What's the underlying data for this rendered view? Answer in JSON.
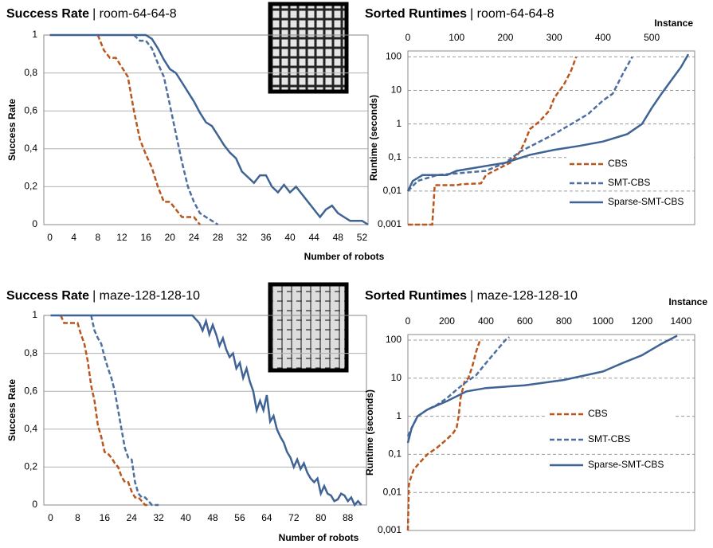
{
  "chart_data": [
    {
      "type": "line",
      "title": "Success Rate",
      "subtitle": "| room-64-64-8",
      "x_label": "Number of robots",
      "y_label": "Success Rate",
      "xlim": [
        -1,
        53
      ],
      "xticks": [
        0,
        4,
        8,
        12,
        16,
        20,
        24,
        28,
        32,
        36,
        40,
        44,
        48,
        52
      ],
      "ylim": [
        0,
        1
      ],
      "yticks": [
        0,
        {
          "value": 0.2,
          "label": "0,2"
        },
        {
          "value": 0.4,
          "label": "0,4"
        },
        {
          "value": 0.6,
          "label": "0,6"
        },
        {
          "value": 0.8,
          "label": "0,8"
        },
        1
      ],
      "grid": true,
      "series": [
        {
          "color": "#b8561e",
          "dashed": true,
          "x": [
            8,
            9,
            10,
            11,
            12,
            13,
            14,
            15,
            16,
            17,
            18,
            19,
            20,
            21,
            22,
            23,
            24,
            25
          ],
          "values": [
            1,
            0.92,
            0.88,
            0.88,
            0.83,
            0.78,
            0.6,
            0.45,
            0.37,
            0.3,
            0.2,
            0.12,
            0.12,
            0.08,
            0.04,
            0.04,
            0.04,
            0
          ]
        },
        {
          "color": "#4d6f9f",
          "dashed": true,
          "x": [
            14,
            15,
            16,
            17,
            18,
            19,
            20,
            21,
            22,
            23,
            24,
            25,
            26,
            27,
            28
          ],
          "values": [
            1,
            0.97,
            0.97,
            0.93,
            0.85,
            0.78,
            0.63,
            0.48,
            0.33,
            0.2,
            0.12,
            0.06,
            0.04,
            0.02,
            0
          ]
        },
        {
          "color": "#3f6394",
          "dashed": false,
          "x": [
            0,
            16,
            17,
            18,
            19,
            20,
            21,
            22,
            23,
            24,
            25,
            26,
            27,
            28,
            29,
            30,
            31,
            32,
            33,
            34,
            35,
            36,
            37,
            38,
            39,
            40,
            41,
            42,
            43,
            44,
            45,
            46,
            47,
            48,
            49,
            50,
            51,
            52,
            53
          ],
          "values": [
            1,
            1,
            0.98,
            0.93,
            0.87,
            0.82,
            0.8,
            0.75,
            0.7,
            0.65,
            0.59,
            0.54,
            0.52,
            0.47,
            0.42,
            0.38,
            0.35,
            0.28,
            0.25,
            0.22,
            0.26,
            0.26,
            0.2,
            0.17,
            0.21,
            0.17,
            0.2,
            0.16,
            0.12,
            0.08,
            0.04,
            0.08,
            0.1,
            0.06,
            0.04,
            0.02,
            0.02,
            0.02,
            0
          ]
        }
      ]
    },
    {
      "type": "line",
      "title": "Sorted Runtimes",
      "subtitle": "| room-64-64-8",
      "x_label": "Instance",
      "y_label": "Runtime (seconds)",
      "xlim": [
        0,
        588
      ],
      "xticks": [
        0,
        100,
        200,
        300,
        400,
        500
      ],
      "ylim": [
        0.001,
        150
      ],
      "yscale": "log",
      "yticks": [
        {
          "value": 0.001,
          "label": "0,001"
        },
        {
          "value": 0.01,
          "label": "0,01"
        },
        {
          "value": 0.1,
          "label": "0,1"
        },
        1,
        10,
        100
      ],
      "grid": true,
      "grid_dashed": true,
      "legend": "lower right",
      "series": [
        {
          "name": "CBS",
          "color": "#b8561e",
          "dashed": true,
          "x": [
            0,
            50,
            55,
            100,
            110,
            150,
            160,
            190,
            210,
            230,
            240,
            250,
            270,
            290,
            300,
            320,
            335,
            345
          ],
          "values": [
            0.001,
            0.001,
            0.015,
            0.015,
            0.016,
            0.017,
            0.03,
            0.05,
            0.07,
            0.15,
            0.3,
            0.7,
            1.2,
            2.5,
            6,
            15,
            40,
            100
          ]
        },
        {
          "name": "SMT-CBS",
          "color": "#4d6f9f",
          "dashed": true,
          "x": [
            0,
            20,
            60,
            160,
            200,
            230,
            260,
            300,
            340,
            370,
            400,
            420,
            440,
            460
          ],
          "values": [
            0.01,
            0.02,
            0.03,
            0.04,
            0.07,
            0.15,
            0.25,
            0.5,
            1.1,
            2,
            5,
            8,
            30,
            100
          ]
        },
        {
          "name": "Sparse-SMT-CBS",
          "color": "#3f6394",
          "dashed": false,
          "x": [
            0,
            10,
            30,
            80,
            100,
            200,
            250,
            300,
            350,
            400,
            450,
            480,
            500,
            520,
            540,
            560,
            575
          ],
          "values": [
            0.01,
            0.02,
            0.03,
            0.03,
            0.04,
            0.07,
            0.12,
            0.17,
            0.22,
            0.3,
            0.5,
            1,
            3,
            8,
            20,
            50,
            120
          ]
        }
      ]
    },
    {
      "type": "line",
      "title": "Success Rate",
      "subtitle": "| maze-128-128-10",
      "x_label": "Number of robots",
      "y_label": "Success Rate",
      "xlim": [
        -2,
        93.5
      ],
      "xticks": [
        0,
        8,
        16,
        24,
        32,
        40,
        48,
        56,
        64,
        72,
        80,
        88
      ],
      "ylim": [
        0,
        1
      ],
      "yticks": [
        0,
        {
          "value": 0.2,
          "label": "0,2"
        },
        {
          "value": 0.4,
          "label": "0,4"
        },
        {
          "value": 0.6,
          "label": "0,6"
        },
        {
          "value": 0.8,
          "label": "0,8"
        },
        1
      ],
      "grid": true,
      "series": [
        {
          "color": "#b8561e",
          "dashed": true,
          "x": [
            3,
            4,
            8,
            9,
            10,
            11,
            12,
            13,
            14,
            15,
            16,
            17,
            18,
            19,
            20,
            21,
            22,
            23,
            24,
            25,
            26,
            27,
            28,
            29
          ],
          "values": [
            1,
            0.96,
            0.96,
            0.9,
            0.85,
            0.76,
            0.63,
            0.55,
            0.42,
            0.36,
            0.28,
            0.27,
            0.25,
            0.22,
            0.2,
            0.15,
            0.12,
            0.12,
            0.07,
            0.04,
            0.04,
            0.02,
            0,
            0
          ]
        },
        {
          "color": "#4d6f9f",
          "dashed": true,
          "x": [
            12,
            13,
            14,
            15,
            16,
            17,
            18,
            19,
            20,
            21,
            22,
            23,
            24,
            25,
            26,
            27,
            28,
            29,
            30,
            32
          ],
          "values": [
            1,
            0.92,
            0.88,
            0.85,
            0.78,
            0.72,
            0.67,
            0.6,
            0.5,
            0.4,
            0.3,
            0.25,
            0.24,
            0.12,
            0.06,
            0.04,
            0.04,
            0.02,
            0,
            0
          ]
        },
        {
          "color": "#3f6394",
          "dashed": false,
          "x": [
            0,
            42,
            43,
            44,
            45,
            46,
            47,
            48,
            49,
            50,
            51,
            52,
            53,
            54,
            55,
            56,
            57,
            58,
            59,
            60,
            61,
            62,
            63,
            64,
            65,
            66,
            67,
            68,
            69,
            70,
            71,
            72,
            73,
            74,
            75,
            76,
            77,
            78,
            79,
            80,
            81,
            82,
            83,
            84,
            85,
            86,
            87,
            88,
            89,
            90,
            91,
            92
          ],
          "values": [
            1,
            1,
            0.98,
            0.96,
            0.92,
            0.97,
            0.9,
            0.95,
            0.9,
            0.84,
            0.88,
            0.82,
            0.78,
            0.8,
            0.72,
            0.75,
            0.67,
            0.72,
            0.65,
            0.6,
            0.5,
            0.55,
            0.5,
            0.58,
            0.44,
            0.47,
            0.4,
            0.36,
            0.33,
            0.28,
            0.25,
            0.2,
            0.24,
            0.19,
            0.22,
            0.17,
            0.14,
            0.12,
            0.14,
            0.06,
            0.1,
            0.06,
            0.05,
            0.02,
            0.03,
            0.06,
            0.05,
            0.02,
            0.04,
            0,
            0.02,
            0
          ]
        }
      ]
    },
    {
      "type": "line",
      "title": "Sorted Runtimes",
      "subtitle": "| maze-128-128-10",
      "x_label": "Instance",
      "y_label": "Runtime (seconds)",
      "xlim": [
        0,
        1470
      ],
      "xticks": [
        0,
        200,
        400,
        600,
        800,
        1000,
        1200,
        1400
      ],
      "ylim": [
        0.001,
        140
      ],
      "yscale": "log",
      "yticks": [
        {
          "value": 0.001,
          "label": "0,001"
        },
        {
          "value": 0.01,
          "label": "0,01"
        },
        {
          "value": 0.1,
          "label": "0,1"
        },
        1,
        10,
        100
      ],
      "grid": true,
      "grid_dashed": true,
      "legend": "center right",
      "series": [
        {
          "name": "CBS",
          "color": "#b8561e",
          "dashed": true,
          "x": [
            0,
            5,
            10,
            30,
            60,
            100,
            150,
            200,
            230,
            250,
            260,
            270,
            290,
            310,
            330,
            350,
            370
          ],
          "values": [
            0.001,
            0.015,
            0.02,
            0.04,
            0.06,
            0.1,
            0.15,
            0.25,
            0.35,
            0.5,
            1,
            3,
            8,
            10,
            20,
            50,
            100
          ]
        },
        {
          "name": "SMT-CBS",
          "color": "#4d6f9f",
          "dashed": true,
          "x": [
            0,
            20,
            50,
            100,
            150,
            200,
            250,
            300,
            350,
            400,
            450,
            500,
            520
          ],
          "values": [
            0.3,
            0.5,
            1,
            1.5,
            2,
            3,
            5,
            8,
            12,
            25,
            50,
            100,
            120
          ]
        },
        {
          "name": "Sparse-SMT-CBS",
          "color": "#3f6394",
          "dashed": false,
          "x": [
            0,
            20,
            50,
            100,
            200,
            300,
            400,
            600,
            800,
            1000,
            1100,
            1200,
            1300,
            1380
          ],
          "values": [
            0.2,
            0.5,
            1,
            1.5,
            2.5,
            4.5,
            5.5,
            6.5,
            9,
            15,
            25,
            40,
            80,
            130
          ]
        }
      ]
    }
  ]
}
